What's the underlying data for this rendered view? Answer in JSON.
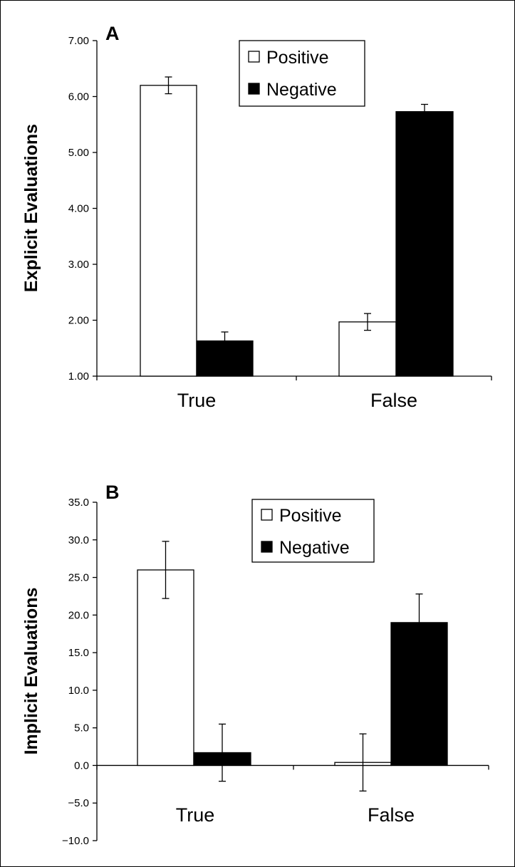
{
  "chart_data": [
    {
      "type": "bar",
      "panel_label": "A",
      "ylabel": "Explicit Evaluations",
      "ylim": [
        1.0,
        7.0
      ],
      "yticks": [
        "1.00",
        "2.00",
        "3.00",
        "4.00",
        "5.00",
        "6.00",
        "7.00"
      ],
      "ytick_values": [
        1,
        2,
        3,
        4,
        5,
        6,
        7
      ],
      "categories": [
        "True",
        "False"
      ],
      "series": [
        {
          "name": "Positive",
          "values": [
            6.2,
            1.97
          ],
          "errors": [
            0.15,
            0.15
          ],
          "color": "#ffffff"
        },
        {
          "name": "Negative",
          "values": [
            1.63,
            5.73
          ],
          "errors": [
            0.16,
            0.13
          ],
          "color": "#000000"
        }
      ],
      "legend": "top-right"
    },
    {
      "type": "bar",
      "panel_label": "B",
      "ylabel": "Implicit Evaluations",
      "ylim": [
        -10.0,
        35.0
      ],
      "yticks": [
        "−10.0",
        "−5.0",
        "0.0",
        "5.0",
        "10.0",
        "15.0",
        "20.0",
        "25.0",
        "30.0",
        "35.0"
      ],
      "ytick_values": [
        -10,
        -5,
        0,
        5,
        10,
        15,
        20,
        25,
        30,
        35
      ],
      "categories": [
        "True",
        "False"
      ],
      "series": [
        {
          "name": "Positive",
          "values": [
            26.0,
            0.4
          ],
          "errors": [
            3.8,
            3.8
          ],
          "color": "#ffffff"
        },
        {
          "name": "Negative",
          "values": [
            1.7,
            19.0
          ],
          "errors": [
            3.8,
            3.8
          ],
          "color": "#000000"
        }
      ],
      "legend": "top-right"
    }
  ]
}
